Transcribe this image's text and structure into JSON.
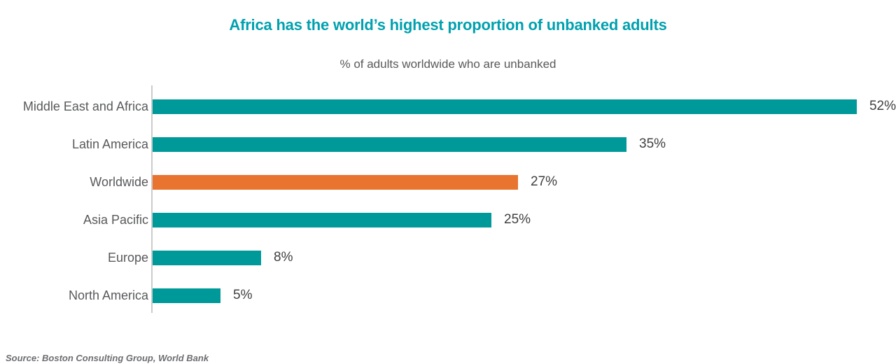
{
  "header": {
    "title": "Africa has the world’s highest proportion of unbanked adults",
    "subtitle": "% of adults worldwide who are unbanked"
  },
  "footer": {
    "source": "Source: Boston Consulting Group, World Bank"
  },
  "colors": {
    "title_teal": "#00A0AF",
    "bar_teal": "#009999",
    "bar_highlight_orange": "#E8742F",
    "label_gray": "#58595B",
    "value_gray": "#404040",
    "axis_gray": "#CBCBCB",
    "source_gray": "#6D6E71"
  },
  "chart_data": {
    "type": "bar",
    "orientation": "horizontal",
    "title": "Africa has the world’s highest proportion of unbanked adults",
    "subtitle": "% of adults worldwide who are unbanked",
    "categories": [
      "Middle East and Africa",
      "Latin America",
      "Worldwide",
      "Asia Pacific",
      "Europe",
      "North America"
    ],
    "values": [
      52,
      35,
      27,
      25,
      8,
      5
    ],
    "value_labels": [
      "52%",
      "35%",
      "27%",
      "25%",
      "8%",
      "5%"
    ],
    "unit": "%",
    "xlim": [
      0,
      55
    ],
    "grid": false,
    "legend": "none",
    "highlight_category": "Worldwide",
    "bar_color": "#009999",
    "highlight_color": "#E8742F",
    "source": "Source: Boston Consulting Group, World Bank"
  }
}
